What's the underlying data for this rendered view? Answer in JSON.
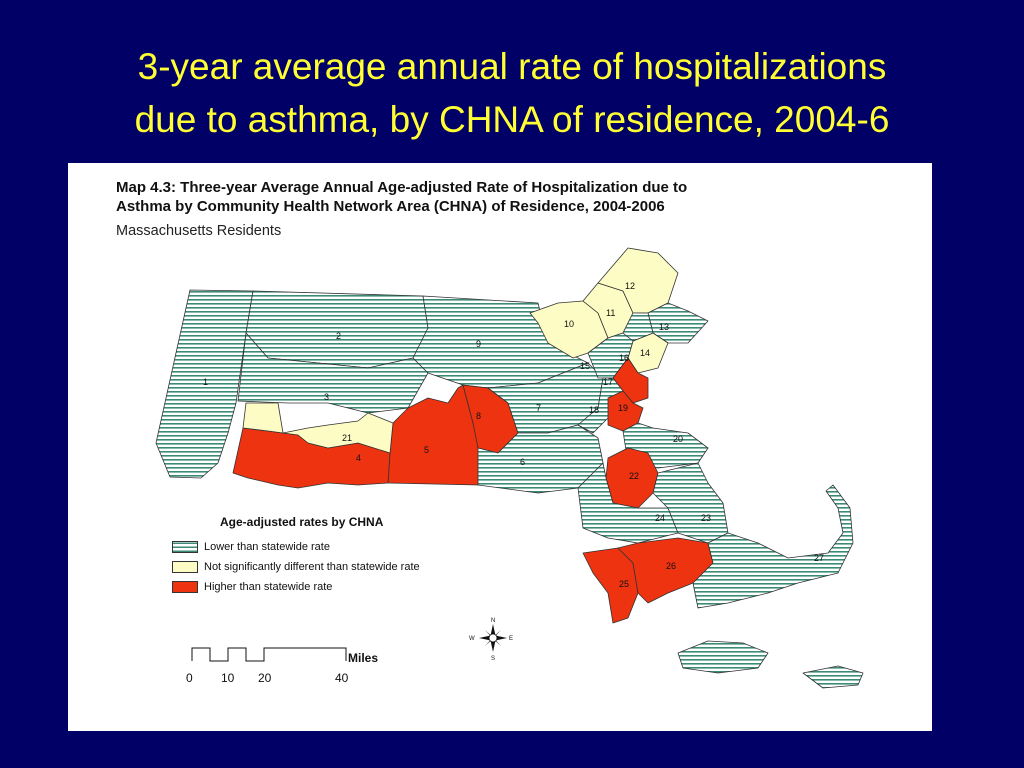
{
  "slide": {
    "title_line1": "3-year average annual rate of hospitalizations",
    "title_line2": "due to asthma, by CHNA of residence, 2004-6"
  },
  "map": {
    "heading_line1": "Map 4.3: Three-year Average Annual Age-adjusted Rate of Hospitalization due to",
    "heading_line2": "Asthma by Community Health Network Area (CHNA) of Residence, 2004-2006",
    "subtitle": "Massachusetts Residents",
    "legend": {
      "title": "Age-adjusted rates by CHNA",
      "items": [
        {
          "label": "Lower than statewide rate",
          "category": "lower",
          "color": "#3c8b77"
        },
        {
          "label": "Not significantly different than statewide rate",
          "category": "nsd",
          "color": "#fcfcc4"
        },
        {
          "label": "Higher than statewide rate",
          "category": "higher",
          "color": "#ee3311"
        }
      ]
    },
    "scale": {
      "unit": "Miles",
      "ticks": [
        "0",
        "10",
        "20",
        "40"
      ]
    },
    "compass": {
      "n": "N",
      "s": "S",
      "e": "E",
      "w": "W"
    },
    "regions": [
      {
        "id": "1",
        "category": "lower"
      },
      {
        "id": "2",
        "category": "lower"
      },
      {
        "id": "3",
        "category": "lower"
      },
      {
        "id": "4",
        "category": "higher"
      },
      {
        "id": "5",
        "category": "higher"
      },
      {
        "id": "6",
        "category": "lower"
      },
      {
        "id": "7",
        "category": "lower"
      },
      {
        "id": "8",
        "category": "higher"
      },
      {
        "id": "9",
        "category": "lower"
      },
      {
        "id": "10",
        "category": "nsd"
      },
      {
        "id": "11",
        "category": "nsd"
      },
      {
        "id": "12",
        "category": "nsd"
      },
      {
        "id": "13",
        "category": "lower"
      },
      {
        "id": "14",
        "category": "nsd"
      },
      {
        "id": "15",
        "category": "lower"
      },
      {
        "id": "16",
        "category": "lower"
      },
      {
        "id": "17",
        "category": "higher"
      },
      {
        "id": "18",
        "category": "lower"
      },
      {
        "id": "19",
        "category": "higher"
      },
      {
        "id": "20",
        "category": "lower"
      },
      {
        "id": "21",
        "category": "nsd"
      },
      {
        "id": "22",
        "category": "higher"
      },
      {
        "id": "23",
        "category": "lower"
      },
      {
        "id": "24",
        "category": "lower"
      },
      {
        "id": "25",
        "category": "higher"
      },
      {
        "id": "26",
        "category": "higher"
      },
      {
        "id": "27",
        "category": "lower"
      }
    ]
  }
}
